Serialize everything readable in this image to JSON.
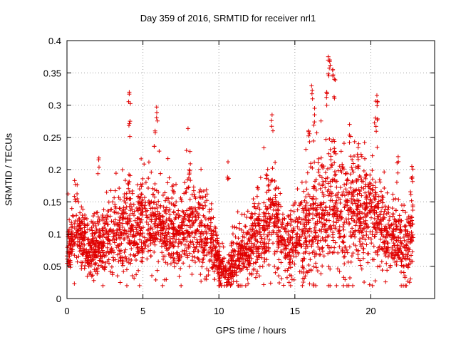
{
  "chart_data": {
    "type": "scatter",
    "title": "Day 359 of 2016, SRMTID for receiver nrl1",
    "xlabel": "GPS time / hours",
    "ylabel": "SRMTID / TECUs",
    "xlim": [
      0,
      24.2
    ],
    "ylim": [
      0,
      0.4
    ],
    "xticks": [
      0,
      5,
      10,
      15,
      20
    ],
    "yticks": [
      0,
      0.05,
      0.1,
      0.15,
      0.2,
      0.25,
      0.3,
      0.35,
      0.4
    ],
    "xtick_labels": [
      "0",
      "5",
      "10",
      "15",
      "20"
    ],
    "ytick_labels": [
      "0",
      "0.05",
      "0.1",
      "0.15",
      "0.2",
      "0.25",
      "0.3",
      "0.35",
      "0.4"
    ],
    "grid": true,
    "marker": "+",
    "color": "#e00000",
    "series": [
      {
        "name": "SRMTID",
        "envelope_x": [
          0,
          0.5,
          1,
          1.5,
          2,
          2.5,
          3,
          3.5,
          4,
          4.5,
          5,
          5.5,
          6,
          6.5,
          7,
          7.5,
          8,
          8.5,
          9,
          9.5,
          10,
          10.5,
          11,
          11.5,
          12,
          12.5,
          13,
          13.5,
          14,
          14.5,
          15,
          15.5,
          16,
          16.5,
          17,
          17.5,
          18,
          18.5,
          19,
          19.5,
          20,
          20.5,
          21,
          21.5,
          22,
          22.5,
          22.8
        ],
        "envelope_mean": [
          0.08,
          0.1,
          0.09,
          0.07,
          0.085,
          0.09,
          0.1,
          0.095,
          0.11,
          0.1,
          0.12,
          0.11,
          0.12,
          0.1,
          0.11,
          0.09,
          0.12,
          0.11,
          0.1,
          0.09,
          0.05,
          0.04,
          0.06,
          0.07,
          0.08,
          0.1,
          0.11,
          0.13,
          0.1,
          0.08,
          0.09,
          0.1,
          0.12,
          0.12,
          0.13,
          0.14,
          0.12,
          0.13,
          0.14,
          0.13,
          0.14,
          0.13,
          0.09,
          0.1,
          0.08,
          0.08,
          0.12
        ],
        "envelope_spread": [
          0.03,
          0.05,
          0.04,
          0.04,
          0.05,
          0.05,
          0.06,
          0.05,
          0.07,
          0.06,
          0.07,
          0.06,
          0.07,
          0.06,
          0.06,
          0.05,
          0.07,
          0.06,
          0.06,
          0.05,
          0.03,
          0.025,
          0.04,
          0.04,
          0.05,
          0.06,
          0.07,
          0.07,
          0.06,
          0.05,
          0.05,
          0.06,
          0.08,
          0.08,
          0.09,
          0.09,
          0.08,
          0.08,
          0.08,
          0.08,
          0.08,
          0.07,
          0.05,
          0.05,
          0.05,
          0.05,
          0.06
        ],
        "peaks": [
          {
            "x": 4.1,
            "y": 0.32
          },
          {
            "x": 4.15,
            "y": 0.275
          },
          {
            "x": 5.9,
            "y": 0.297
          },
          {
            "x": 5.8,
            "y": 0.26
          },
          {
            "x": 13.5,
            "y": 0.285
          },
          {
            "x": 16.1,
            "y": 0.33
          },
          {
            "x": 16.3,
            "y": 0.295
          },
          {
            "x": 17.2,
            "y": 0.375
          },
          {
            "x": 17.3,
            "y": 0.37
          },
          {
            "x": 17.5,
            "y": 0.355
          },
          {
            "x": 17.6,
            "y": 0.34
          },
          {
            "x": 17.1,
            "y": 0.32
          },
          {
            "x": 20.4,
            "y": 0.315
          },
          {
            "x": 20.45,
            "y": 0.305
          },
          {
            "x": 18.6,
            "y": 0.27
          },
          {
            "x": 20.3,
            "y": 0.28
          },
          {
            "x": 0.5,
            "y": 0.183
          },
          {
            "x": 2.1,
            "y": 0.218
          },
          {
            "x": 8.1,
            "y": 0.228
          },
          {
            "x": 10.6,
            "y": 0.212
          },
          {
            "x": 22.7,
            "y": 0.205
          },
          {
            "x": 21.8,
            "y": 0.22
          },
          {
            "x": 19.2,
            "y": 0.24
          },
          {
            "x": 15.9,
            "y": 0.26
          }
        ]
      }
    ]
  }
}
